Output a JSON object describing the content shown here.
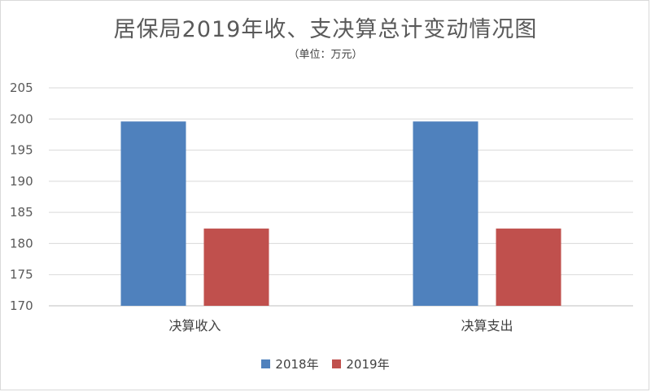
{
  "chart_data": {
    "type": "bar",
    "title": "居保局2019年收、支决算总计变动情况图",
    "subtitle": "（单位：万元）",
    "categories": [
      "决算收入",
      "决算支出"
    ],
    "series": [
      {
        "name": "2018年",
        "color": "#4f81bd",
        "values": [
          199.6,
          199.6
        ]
      },
      {
        "name": "2019年",
        "color": "#c0504d",
        "values": [
          182.4,
          182.4
        ]
      }
    ],
    "ylim": [
      170,
      205
    ],
    "yticks": [
      170,
      175,
      180,
      185,
      190,
      195,
      200,
      205
    ],
    "grid": true,
    "legend_position": "bottom"
  }
}
